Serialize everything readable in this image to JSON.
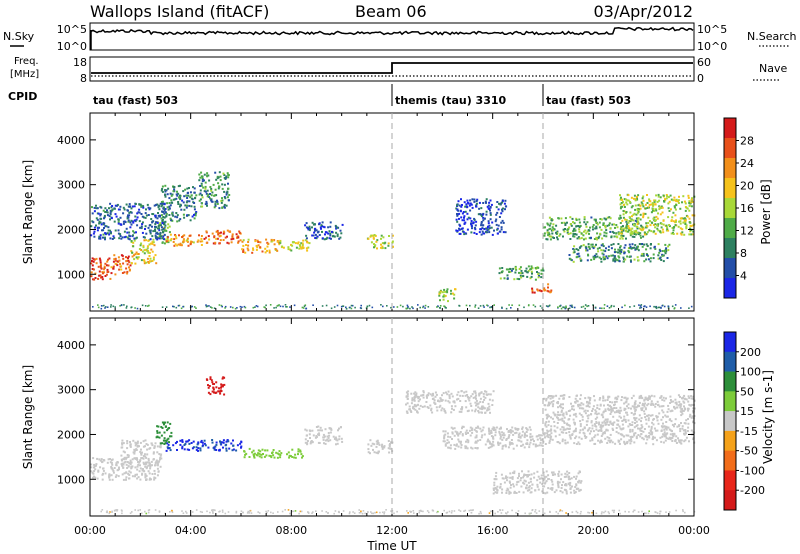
{
  "header": {
    "title": "Wallops Island (fitACF)",
    "beam": "Beam 06",
    "date": "03/Apr/2012"
  },
  "top_panel": {
    "nsky_label": "N.Sky",
    "nsearch_label": "N.Search",
    "freq_label_1": "Freq.",
    "freq_label_2": "[MHz]",
    "nave_label": "Nave",
    "cpid_label": "CPID",
    "left_ticks": {
      "nsky_top": "10^5",
      "nsky_bottom": "10^0",
      "freq_top": "18",
      "freq_bottom": "8"
    },
    "right_ticks": {
      "nsearch_top": "10^5",
      "nsearch_bottom": "10^0",
      "nave_top": "60",
      "nave_bottom": "0"
    }
  },
  "cpid_segments": [
    {
      "label": "tau (fast) 503",
      "start_hour": 0
    },
    {
      "label": "themis (tau) 3310",
      "start_hour": 12
    },
    {
      "label": "tau (fast) 503",
      "start_hour": 18
    }
  ],
  "chart_data": [
    {
      "type": "heatmap",
      "name": "power",
      "ylabel": "Slant Range [km]",
      "xlim": [
        0,
        24
      ],
      "ylim": [
        180,
        4600
      ],
      "yticks": [
        1000,
        2000,
        3000,
        4000
      ],
      "colorbar": {
        "label": "Power [dB]",
        "ticks": [
          4,
          8,
          12,
          16,
          20,
          24,
          28
        ],
        "range": [
          0,
          32
        ],
        "colors": [
          "#1b27e6",
          "#234ea8",
          "#2d8060",
          "#4fab47",
          "#a8d838",
          "#f5c21b",
          "#f28f1a",
          "#e8501a",
          "#d41a1a"
        ]
      },
      "regions": [
        {
          "x": [
            0,
            0.8
          ],
          "y": [
            900,
            1400
          ],
          "level": 28
        },
        {
          "x": [
            0.8,
            1.6
          ],
          "y": [
            1000,
            1450
          ],
          "level": 26
        },
        {
          "x": [
            1.6,
            2.6
          ],
          "y": [
            1250,
            1800
          ],
          "level": 18
        },
        {
          "x": [
            2.6,
            3.2
          ],
          "y": [
            1700,
            2200
          ],
          "level": 14
        },
        {
          "x": [
            3.0,
            4.5
          ],
          "y": [
            1650,
            1900
          ],
          "level": 22
        },
        {
          "x": [
            4.5,
            6.0
          ],
          "y": [
            1700,
            2000
          ],
          "level": 26
        },
        {
          "x": [
            6.0,
            7.5
          ],
          "y": [
            1500,
            1800
          ],
          "level": 22
        },
        {
          "x": [
            7.5,
            8.7
          ],
          "y": [
            1550,
            1800
          ],
          "level": 18
        },
        {
          "x": [
            2.8,
            4.2
          ],
          "y": [
            2200,
            3000
          ],
          "level": 8
        },
        {
          "x": [
            4.3,
            5.5
          ],
          "y": [
            2500,
            3300
          ],
          "level": 10
        },
        {
          "x": [
            0,
            3.0
          ],
          "y": [
            1800,
            2600
          ],
          "level": 6
        },
        {
          "x": [
            8.5,
            10.0
          ],
          "y": [
            1800,
            2200
          ],
          "level": 6
        },
        {
          "x": [
            11.0,
            12.0
          ],
          "y": [
            1600,
            1900
          ],
          "level": 16
        },
        {
          "x": [
            14.5,
            16.5
          ],
          "y": [
            1900,
            2700
          ],
          "level": 4
        },
        {
          "x": [
            16.2,
            18.0
          ],
          "y": [
            900,
            1200
          ],
          "level": 12
        },
        {
          "x": [
            18.0,
            22.0
          ],
          "y": [
            1800,
            2300
          ],
          "level": 12
        },
        {
          "x": [
            19.0,
            23.0
          ],
          "y": [
            1300,
            1700
          ],
          "level": 10
        },
        {
          "x": [
            21.0,
            24.0
          ],
          "y": [
            1900,
            2800
          ],
          "level": 16
        },
        {
          "x": [
            17.5,
            18.3
          ],
          "y": [
            600,
            800
          ],
          "level": 28
        },
        {
          "x": [
            13.8,
            14.5
          ],
          "y": [
            400,
            700
          ],
          "level": 16
        }
      ]
    },
    {
      "type": "heatmap",
      "name": "velocity",
      "xlabel": "Time UT",
      "ylabel": "Slant Range [km]",
      "xlim": [
        0,
        24
      ],
      "ylim": [
        180,
        4600
      ],
      "xticks": [
        "00:00",
        "04:00",
        "08:00",
        "12:00",
        "16:00",
        "20:00",
        "00:00"
      ],
      "yticks": [
        1000,
        2000,
        3000,
        4000
      ],
      "colorbar": {
        "label": "Velocity [m s-1]",
        "ticks": [
          200,
          100,
          50,
          15,
          -15,
          -50,
          -100,
          -200
        ],
        "range": [
          -250,
          250
        ],
        "colors": [
          "#1b27e6",
          "#1f5da8",
          "#2d8f3a",
          "#7dcc3a",
          "#c8c8c8",
          "#f5a21a",
          "#f26d1a",
          "#e8261a",
          "#d41a1a"
        ]
      },
      "regions": [
        {
          "x": [
            0,
            2.7
          ],
          "y": [
            1000,
            1500
          ],
          "level": 0
        },
        {
          "x": [
            1.2,
            2.8
          ],
          "y": [
            1300,
            1900
          ],
          "level": 0
        },
        {
          "x": [
            3.0,
            6.0
          ],
          "y": [
            1650,
            1900
          ],
          "level": 200
        },
        {
          "x": [
            6.0,
            8.5
          ],
          "y": [
            1500,
            1700
          ],
          "level": 50
        },
        {
          "x": [
            2.6,
            3.2
          ],
          "y": [
            1800,
            2300
          ],
          "level": 100
        },
        {
          "x": [
            4.6,
            5.4
          ],
          "y": [
            2900,
            3300
          ],
          "level": -220
        },
        {
          "x": [
            8.5,
            10.0
          ],
          "y": [
            1800,
            2200
          ],
          "level": 0
        },
        {
          "x": [
            11.0,
            12.0
          ],
          "y": [
            1600,
            1900
          ],
          "level": 0
        },
        {
          "x": [
            14.0,
            18.0
          ],
          "y": [
            1700,
            2200
          ],
          "level": 0
        },
        {
          "x": [
            16.0,
            19.5
          ],
          "y": [
            700,
            1200
          ],
          "level": 0
        },
        {
          "x": [
            18.0,
            24.0
          ],
          "y": [
            1800,
            2900
          ],
          "level": 0
        },
        {
          "x": [
            12.5,
            16.0
          ],
          "y": [
            2500,
            3000
          ],
          "level": 0
        }
      ]
    }
  ]
}
